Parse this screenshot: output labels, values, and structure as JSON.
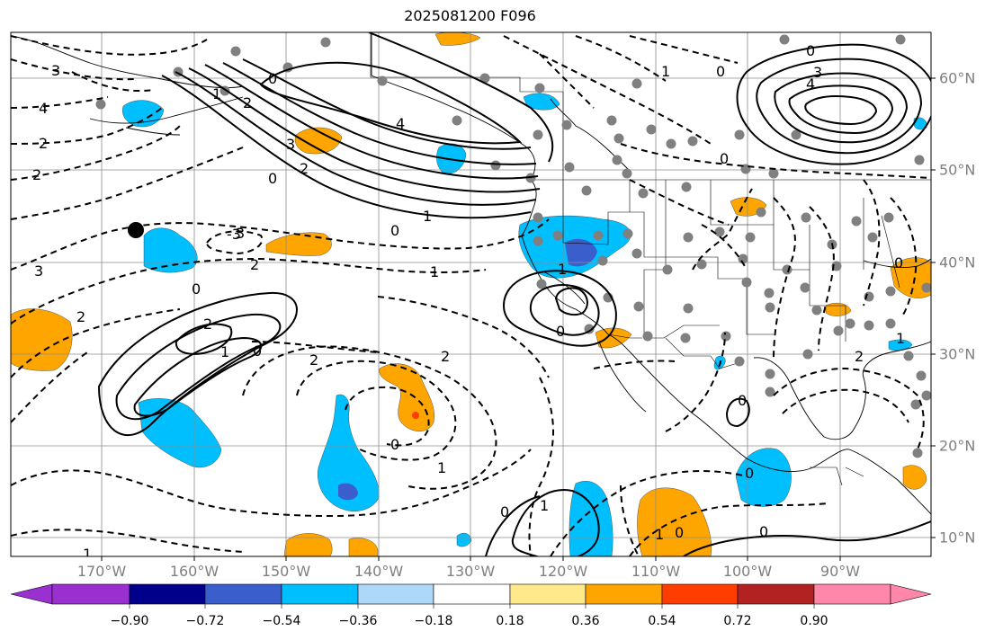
{
  "title": "2025081200 F096",
  "lon_labels": [
    "170°W",
    "160°W",
    "150°W",
    "140°W",
    "130°W",
    "120°W",
    "110°W",
    "100°W",
    "90°W"
  ],
  "lat_labels": [
    "60°N",
    "50°N",
    "40°N",
    "30°N",
    "20°N",
    "10°N"
  ],
  "colorbar": {
    "ticks": [
      "−0.90",
      "−0.72",
      "−0.54",
      "−0.36",
      "−0.18",
      "0.18",
      "0.36",
      "0.54",
      "0.72",
      "0.90"
    ],
    "colors": [
      "#9b30d0",
      "#00008b",
      "#3a5fcd",
      "#00bfff",
      "#add8f8",
      "#ffffff",
      "#ffe98a",
      "#ffa500",
      "#ff3d00",
      "#b22222",
      "#ff88aa"
    ]
  },
  "shading": {
    "positive_color": "#ffa500",
    "negative_color": "#00bfff",
    "strong_negative_color": "#3a5fcd",
    "strong_positive_color": "#ff3d00"
  },
  "contour_labels": [
    "3",
    "4",
    "2",
    "2",
    "3",
    "1",
    "0",
    "2",
    "4",
    "3",
    "2",
    "0",
    "1",
    "0",
    "-3",
    "3",
    "2",
    "0",
    "1",
    "2",
    "2",
    "1",
    "0",
    "2",
    "0",
    "1",
    "0",
    "2",
    "0",
    "1",
    "0",
    "0",
    "1",
    "1",
    "0",
    "0",
    "1",
    "4",
    "3",
    "0",
    "0",
    "1",
    "2",
    "0",
    "1",
    "0"
  ]
}
